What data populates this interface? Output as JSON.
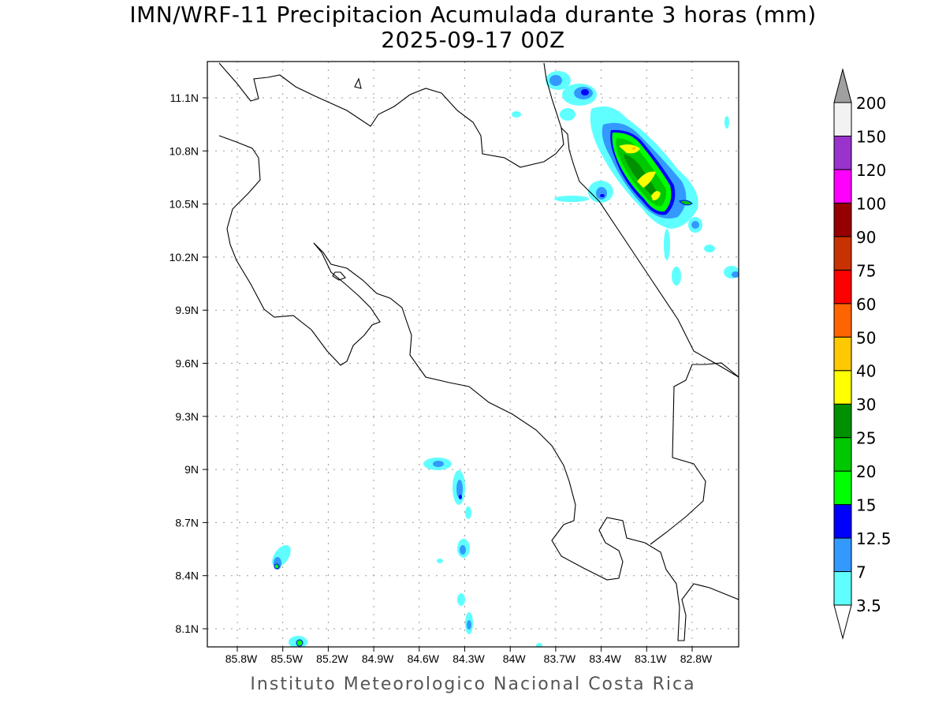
{
  "title": "IMN/WRF-11 Precipitacion Acumulada durante 3 horas (mm)",
  "subtitle": "2025-09-17 00Z",
  "footer": "Instituto Meteorologico Nacional Costa Rica",
  "map": {
    "region": "Costa Rica",
    "lon_labels": [
      "85.8W",
      "85.5W",
      "85.2W",
      "84.9W",
      "84.6W",
      "84.3W",
      "84W",
      "83.7W",
      "83.4W",
      "83.1W",
      "82.8W"
    ],
    "lat_labels": [
      "11.1N",
      "10.8N",
      "10.5N",
      "10.2N",
      "9.9N",
      "9.6N",
      "9.3N",
      "9N",
      "8.7N",
      "8.4N",
      "8.1N"
    ]
  },
  "colorbar": {
    "levels": [
      "3.5",
      "7",
      "12.5",
      "15",
      "20",
      "25",
      "30",
      "40",
      "50",
      "60",
      "75",
      "90",
      "100",
      "120",
      "150",
      "200"
    ],
    "colors": [
      "#60ffff",
      "#3399ff",
      "#0000ff",
      "#00ff00",
      "#00c800",
      "#009100",
      "#ffff00",
      "#ffc800",
      "#ff6400",
      "#ff0000",
      "#c83200",
      "#960000",
      "#ff00ff",
      "#9933cc",
      "#f2f2f2"
    ],
    "over_color": "#a0a0a0",
    "under_color": "#ffffff"
  }
}
